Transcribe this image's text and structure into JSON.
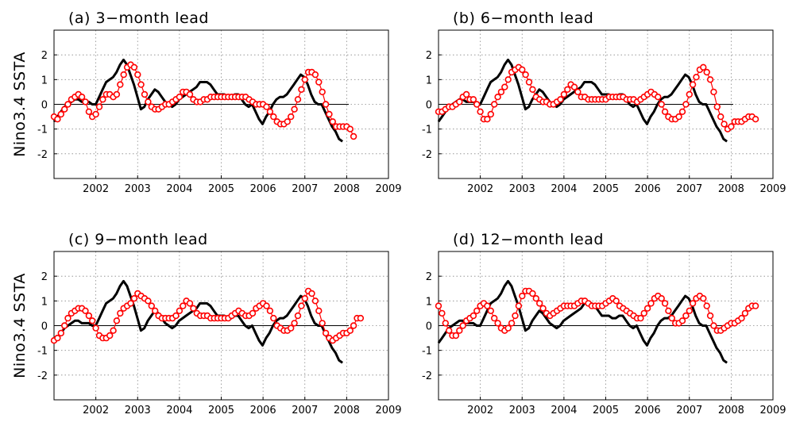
{
  "figure": {
    "ylabel": "Nino3.4  SSTA"
  },
  "chart_data": [
    {
      "type": "line",
      "title": "(a) 3−month lead",
      "ylabel": "Nino3.4  SSTA",
      "xlim": [
        2001,
        2009
      ],
      "ylim": [
        -3,
        3
      ],
      "xticks": [
        2002,
        2003,
        2004,
        2005,
        2006,
        2007,
        2008,
        2009
      ],
      "yticks": [
        -2,
        -1,
        0,
        1,
        2
      ],
      "grid": true,
      "forecast_start": 2001.0,
      "forecast_values": [
        -0.5,
        -0.6,
        -0.4,
        -0.2,
        0.0,
        0.2,
        0.3,
        0.4,
        0.3,
        0.1,
        -0.3,
        -0.5,
        -0.4,
        -0.1,
        0.2,
        0.4,
        0.4,
        0.3,
        0.4,
        0.8,
        1.2,
        1.5,
        1.6,
        1.5,
        1.2,
        0.8,
        0.4,
        0.1,
        -0.1,
        -0.2,
        -0.2,
        -0.1,
        0.0,
        0.0,
        0.1,
        0.2,
        0.3,
        0.5,
        0.5,
        0.4,
        0.2,
        0.1,
        0.1,
        0.2,
        0.2,
        0.3,
        0.3,
        0.3,
        0.3,
        0.3,
        0.3,
        0.3,
        0.3,
        0.3,
        0.3,
        0.3,
        0.2,
        0.1,
        0.0,
        0.0,
        0.0,
        -0.1,
        -0.3,
        -0.5,
        -0.7,
        -0.8,
        -0.8,
        -0.7,
        -0.5,
        -0.2,
        0.2,
        0.6,
        1.0,
        1.3,
        1.3,
        1.2,
        0.9,
        0.5,
        0.0,
        -0.4,
        -0.7,
        -0.9,
        -0.9,
        -0.9,
        -0.9,
        -1.0,
        -1.3
      ]
    },
    {
      "type": "line",
      "title": "(b) 6−month lead",
      "xlim": [
        2001,
        2009
      ],
      "ylim": [
        -3,
        3
      ],
      "xticks": [
        2002,
        2003,
        2004,
        2005,
        2006,
        2007,
        2008,
        2009
      ],
      "yticks": [
        -2,
        -1,
        0,
        1,
        2
      ],
      "grid": true,
      "forecast_start": 2001.0,
      "forecast_values": [
        -0.3,
        -0.3,
        -0.2,
        -0.1,
        -0.1,
        0.0,
        0.1,
        0.3,
        0.4,
        0.2,
        0.2,
        0.0,
        -0.3,
        -0.6,
        -0.6,
        -0.4,
        0.0,
        0.3,
        0.5,
        0.7,
        1.0,
        1.3,
        1.4,
        1.5,
        1.4,
        1.2,
        0.9,
        0.6,
        0.3,
        0.2,
        0.1,
        0.1,
        0.0,
        0.0,
        0.1,
        0.2,
        0.4,
        0.6,
        0.8,
        0.7,
        0.5,
        0.3,
        0.3,
        0.2,
        0.2,
        0.2,
        0.2,
        0.2,
        0.2,
        0.3,
        0.3,
        0.3,
        0.3,
        0.3,
        0.2,
        0.2,
        0.2,
        0.1,
        0.2,
        0.3,
        0.4,
        0.5,
        0.4,
        0.3,
        0.0,
        -0.3,
        -0.5,
        -0.6,
        -0.6,
        -0.5,
        -0.3,
        0.0,
        0.4,
        0.8,
        1.1,
        1.4,
        1.5,
        1.3,
        1.0,
        0.5,
        -0.1,
        -0.5,
        -0.8,
        -1.0,
        -0.9,
        -0.7,
        -0.7,
        -0.7,
        -0.6,
        -0.5,
        -0.5,
        -0.6
      ]
    },
    {
      "type": "line",
      "title": "(c) 9−month lead",
      "ylabel": "Nino3.4  SSTA",
      "xlim": [
        2001,
        2009
      ],
      "ylim": [
        -3,
        3
      ],
      "xticks": [
        2002,
        2003,
        2004,
        2005,
        2006,
        2007,
        2008,
        2009
      ],
      "yticks": [
        -2,
        -1,
        0,
        1,
        2
      ],
      "grid": true,
      "forecast_start": 2001.0,
      "forecast_values": [
        -0.6,
        -0.5,
        -0.3,
        0.0,
        0.3,
        0.5,
        0.6,
        0.7,
        0.7,
        0.6,
        0.4,
        0.2,
        -0.1,
        -0.4,
        -0.5,
        -0.5,
        -0.4,
        -0.2,
        0.2,
        0.5,
        0.7,
        0.8,
        0.9,
        1.1,
        1.3,
        1.2,
        1.1,
        1.0,
        0.8,
        0.6,
        0.4,
        0.3,
        0.3,
        0.3,
        0.3,
        0.4,
        0.6,
        0.8,
        1.0,
        0.9,
        0.7,
        0.5,
        0.4,
        0.4,
        0.4,
        0.3,
        0.3,
        0.3,
        0.3,
        0.3,
        0.3,
        0.4,
        0.5,
        0.6,
        0.5,
        0.4,
        0.4,
        0.5,
        0.7,
        0.8,
        0.9,
        0.8,
        0.6,
        0.3,
        0.0,
        -0.1,
        -0.2,
        -0.2,
        -0.1,
        0.1,
        0.4,
        0.8,
        1.1,
        1.4,
        1.3,
        1.0,
        0.6,
        0.1,
        -0.3,
        -0.5,
        -0.6,
        -0.5,
        -0.4,
        -0.3,
        -0.3,
        -0.2,
        0.0,
        0.3,
        0.3
      ]
    },
    {
      "type": "line",
      "title": "(d) 12−month lead",
      "xlim": [
        2001,
        2009
      ],
      "ylim": [
        -3,
        3
      ],
      "xticks": [
        2002,
        2003,
        2004,
        2005,
        2006,
        2007,
        2008,
        2009
      ],
      "yticks": [
        -2,
        -1,
        0,
        1,
        2
      ],
      "grid": true,
      "forecast_start": 2001.0,
      "forecast_values": [
        0.8,
        0.5,
        0.1,
        -0.2,
        -0.4,
        -0.4,
        -0.2,
        0.0,
        0.2,
        0.3,
        0.4,
        0.6,
        0.8,
        0.9,
        0.8,
        0.6,
        0.3,
        0.1,
        -0.1,
        -0.2,
        -0.1,
        0.1,
        0.4,
        0.8,
        1.2,
        1.4,
        1.4,
        1.3,
        1.1,
        0.9,
        0.7,
        0.5,
        0.4,
        0.5,
        0.6,
        0.7,
        0.8,
        0.8,
        0.8,
        0.8,
        0.9,
        1.0,
        1.0,
        0.9,
        0.8,
        0.8,
        0.8,
        0.8,
        0.9,
        1.0,
        1.1,
        1.0,
        0.8,
        0.7,
        0.6,
        0.5,
        0.4,
        0.3,
        0.3,
        0.5,
        0.7,
        0.9,
        1.1,
        1.2,
        1.1,
        0.9,
        0.6,
        0.3,
        0.1,
        0.1,
        0.2,
        0.4,
        0.6,
        0.9,
        1.1,
        1.2,
        1.1,
        0.8,
        0.4,
        0.0,
        -0.2,
        -0.2,
        -0.1,
        0.0,
        0.1,
        0.1,
        0.2,
        0.3,
        0.5,
        0.7,
        0.8,
        0.8
      ]
    }
  ],
  "observed": {
    "x_start": 2001.0,
    "x_end": 2007.9,
    "values": [
      -0.7,
      -0.5,
      -0.3,
      -0.1,
      0.0,
      0.1,
      0.2,
      0.2,
      0.1,
      0.1,
      0.1,
      0.0,
      0.0,
      0.3,
      0.6,
      0.9,
      1.0,
      1.1,
      1.3,
      1.6,
      1.8,
      1.6,
      1.2,
      0.8,
      0.3,
      -0.2,
      -0.1,
      0.2,
      0.4,
      0.6,
      0.5,
      0.3,
      0.1,
      0.0,
      -0.1,
      0.0,
      0.2,
      0.3,
      0.4,
      0.5,
      0.6,
      0.7,
      0.9,
      0.9,
      0.9,
      0.8,
      0.6,
      0.4,
      0.4,
      0.4,
      0.3,
      0.3,
      0.4,
      0.4,
      0.2,
      0.0,
      -0.1,
      0.0,
      -0.3,
      -0.6,
      -0.8,
      -0.5,
      -0.3,
      0.0,
      0.2,
      0.3,
      0.3,
      0.4,
      0.6,
      0.8,
      1.0,
      1.2,
      1.1,
      0.8,
      0.4,
      0.1,
      0.0,
      0.0,
      -0.3,
      -0.6,
      -0.9,
      -1.1,
      -1.4,
      -1.5
    ]
  }
}
